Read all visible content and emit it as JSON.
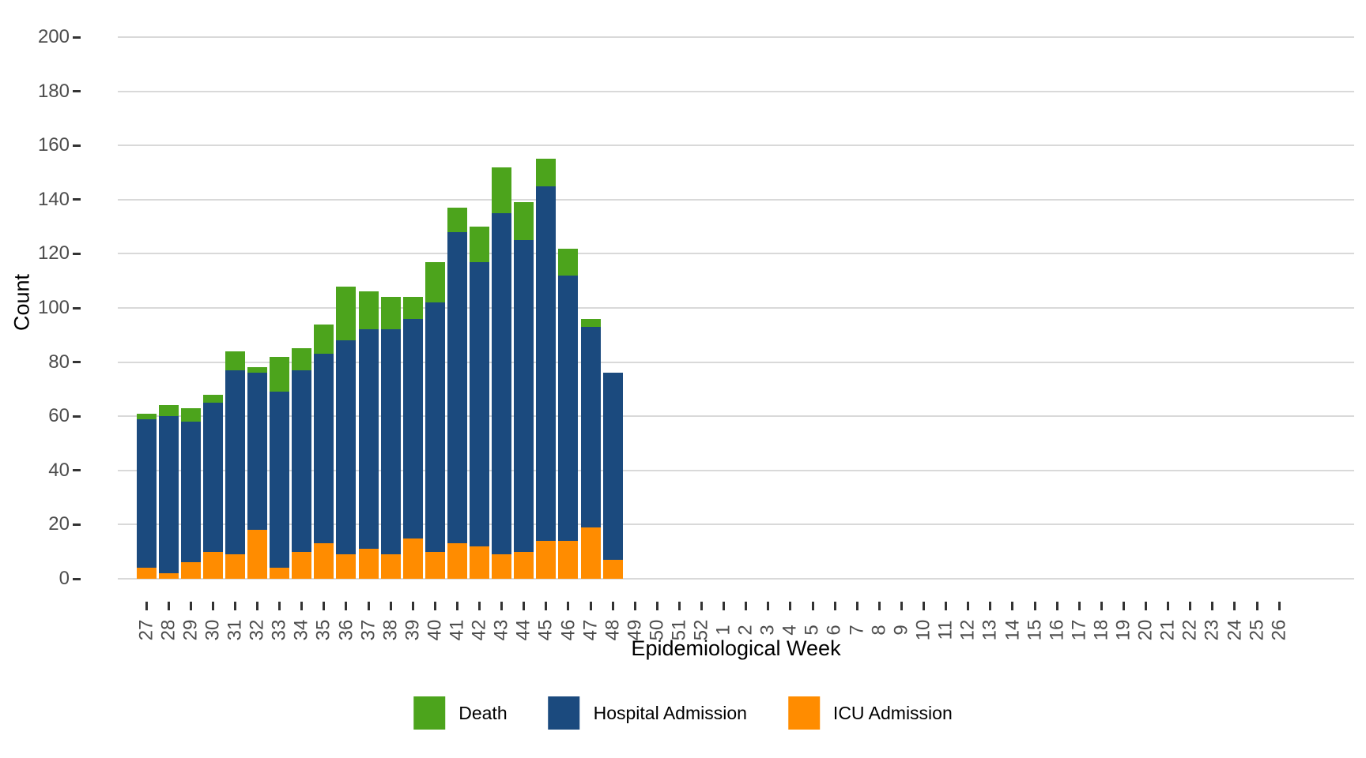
{
  "chart_data": {
    "type": "bar",
    "stacked": true,
    "title": "",
    "xlabel": "Epidemiological Week",
    "ylabel": "Count",
    "ylim": [
      0,
      200
    ],
    "yticks": [
      0,
      20,
      40,
      60,
      80,
      100,
      120,
      140,
      160,
      180,
      200
    ],
    "grid": "horizontal",
    "legend_position": "bottom",
    "categories": [
      "27",
      "28",
      "29",
      "30",
      "31",
      "32",
      "33",
      "34",
      "35",
      "36",
      "37",
      "38",
      "39",
      "40",
      "41",
      "42",
      "43",
      "44",
      "45",
      "46",
      "47",
      "48",
      "49",
      "50",
      "51",
      "52",
      "1",
      "2",
      "3",
      "4",
      "5",
      "6",
      "7",
      "8",
      "9",
      "10",
      "11",
      "12",
      "13",
      "14",
      "15",
      "16",
      "17",
      "18",
      "19",
      "20",
      "21",
      "22",
      "23",
      "24",
      "25",
      "26"
    ],
    "series": [
      {
        "name": "ICU Admission",
        "color": "#FF8C00",
        "values": [
          4,
          2,
          6,
          10,
          9,
          18,
          4,
          10,
          13,
          9,
          11,
          9,
          15,
          10,
          13,
          12,
          9,
          10,
          14,
          14,
          19,
          7,
          0,
          0,
          0,
          0,
          0,
          0,
          0,
          0,
          0,
          0,
          0,
          0,
          0,
          0,
          0,
          0,
          0,
          0,
          0,
          0,
          0,
          0,
          0,
          0,
          0,
          0,
          0,
          0,
          0,
          0
        ]
      },
      {
        "name": "Hospital Admission",
        "color": "#1B4A7E",
        "values": [
          55,
          58,
          52,
          55,
          68,
          58,
          65,
          67,
          70,
          79,
          81,
          83,
          81,
          92,
          115,
          105,
          126,
          115,
          131,
          98,
          74,
          69,
          0,
          0,
          0,
          0,
          0,
          0,
          0,
          0,
          0,
          0,
          0,
          0,
          0,
          0,
          0,
          0,
          0,
          0,
          0,
          0,
          0,
          0,
          0,
          0,
          0,
          0,
          0,
          0,
          0,
          0
        ]
      },
      {
        "name": "Death",
        "color": "#4CA41C",
        "values": [
          2,
          4,
          5,
          3,
          7,
          2,
          13,
          8,
          11,
          20,
          14,
          12,
          8,
          15,
          9,
          13,
          17,
          14,
          10,
          10,
          3,
          0,
          0,
          0,
          0,
          0,
          0,
          0,
          0,
          0,
          0,
          0,
          0,
          0,
          0,
          0,
          0,
          0,
          0,
          0,
          0,
          0,
          0,
          0,
          0,
          0,
          0,
          0,
          0,
          0,
          0,
          0
        ]
      }
    ],
    "legend_order": [
      "Death",
      "Hospital Admission",
      "ICU Admission"
    ]
  }
}
